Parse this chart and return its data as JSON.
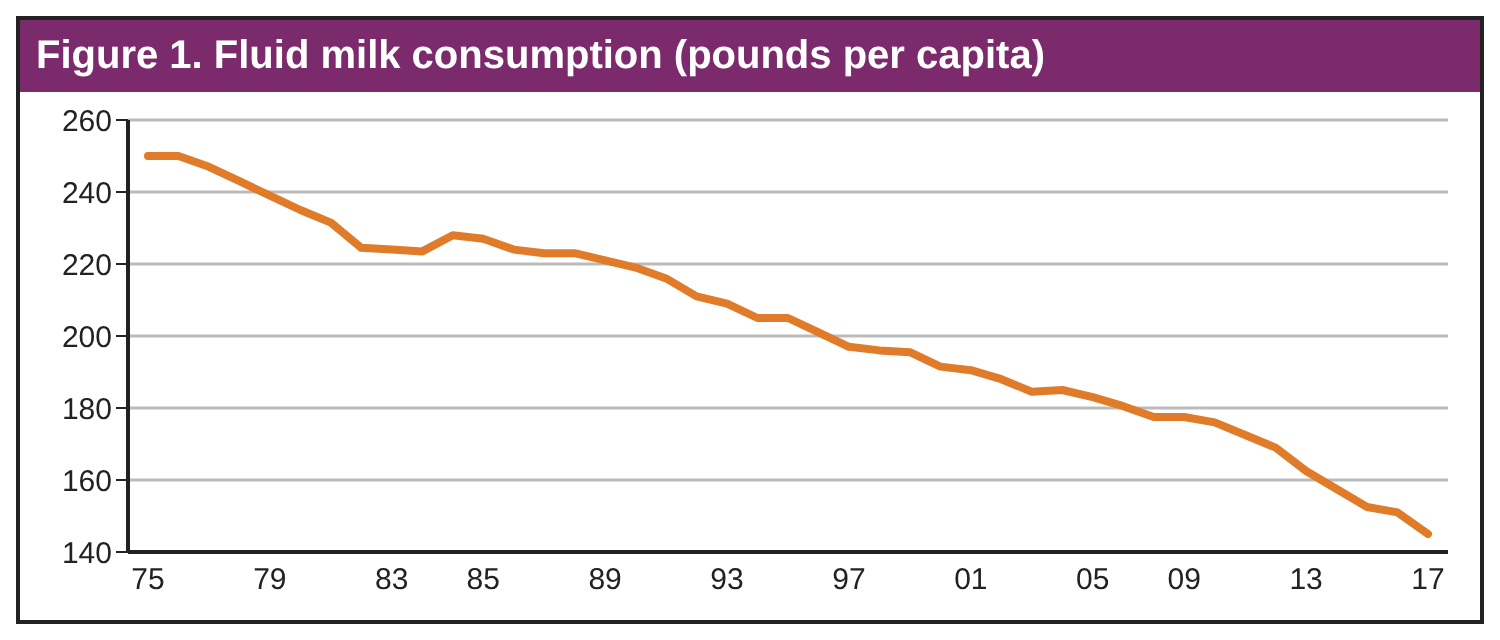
{
  "chart_data": {
    "type": "line",
    "title": "Figure 1. Fluid milk consumption (pounds per capita)",
    "categories": [
      "75",
      null,
      null,
      null,
      "79",
      null,
      null,
      null,
      "83",
      null,
      null,
      "85",
      null,
      null,
      null,
      "89",
      null,
      null,
      null,
      "93",
      null,
      null,
      null,
      "97",
      null,
      null,
      null,
      "01",
      null,
      null,
      null,
      "05",
      null,
      null,
      "09",
      null,
      null,
      null,
      "13",
      null,
      null,
      null,
      "17"
    ],
    "series": [
      {
        "color": "#e07b2a",
        "values": [
          250,
          250,
          247,
          243,
          239,
          235,
          231.5,
          224.5,
          224,
          223.5,
          228,
          227,
          224,
          223,
          223,
          221,
          219,
          216,
          211,
          209,
          205,
          205,
          201,
          197,
          196,
          195.5,
          191.5,
          190.5,
          188,
          184.5,
          185,
          183,
          180.5,
          177.5,
          177.5,
          176,
          172.5,
          169,
          162.5,
          157.5,
          152.5,
          151,
          145
        ]
      }
    ],
    "ylim": [
      140,
      260
    ],
    "yticks": [
      140,
      160,
      180,
      200,
      220,
      240,
      260
    ],
    "grid": "y",
    "marker": "none",
    "line_style": "solid"
  }
}
